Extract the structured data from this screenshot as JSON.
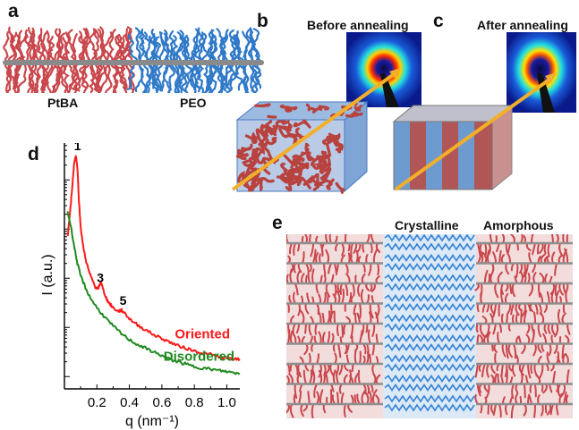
{
  "panels": {
    "a": {
      "letter": "a",
      "block_labels": [
        "PtBA",
        "PEO"
      ]
    },
    "b": {
      "letter": "b",
      "title": "Before annealing"
    },
    "c": {
      "letter": "c",
      "title": "After annealing"
    },
    "d": {
      "letter": "d"
    },
    "e": {
      "letter": "e",
      "region_labels": [
        "Crystalline",
        "Amorphous"
      ]
    }
  },
  "colors": {
    "ptba": "#c9474c",
    "peo": "#2f79c8",
    "backbone": "#8a8a8a",
    "oriented": "#ff1a1a",
    "disordered": "#1f8a1f",
    "arrow": "#f2b02a"
  },
  "chart_data": {
    "type": "line",
    "xlabel": "q (nm⁻¹)",
    "ylabel": "I (a.u.)",
    "xlim": [
      0.0,
      1.08
    ],
    "ylim": [
      0,
      1
    ],
    "x_ticks": [
      "0.2",
      "0.4",
      "0.6",
      "0.8",
      "1.0"
    ],
    "y_scale": "log",
    "peak_labels": [
      {
        "text": "1",
        "q": 0.07
      },
      {
        "text": "3",
        "q": 0.21
      },
      {
        "text": "5",
        "q": 0.35
      }
    ],
    "series": [
      {
        "name": "Oriented",
        "color": "#ff1a1a",
        "x": [
          0.02,
          0.035,
          0.05,
          0.06,
          0.07,
          0.08,
          0.09,
          0.1,
          0.115,
          0.13,
          0.15,
          0.17,
          0.19,
          0.205,
          0.215,
          0.225,
          0.24,
          0.26,
          0.28,
          0.3,
          0.33,
          0.35,
          0.37,
          0.4,
          0.45,
          0.5,
          0.55,
          0.6,
          0.65,
          0.7,
          0.75,
          0.8,
          0.85,
          0.9,
          0.95,
          1.0,
          1.05,
          1.08
        ],
        "y": [
          0.62,
          0.72,
          0.84,
          0.92,
          0.95,
          0.9,
          0.76,
          0.66,
          0.58,
          0.53,
          0.48,
          0.445,
          0.415,
          0.405,
          0.42,
          0.435,
          0.4,
          0.365,
          0.345,
          0.33,
          0.315,
          0.32,
          0.31,
          0.285,
          0.26,
          0.24,
          0.22,
          0.205,
          0.19,
          0.175,
          0.165,
          0.155,
          0.145,
          0.14,
          0.13,
          0.125,
          0.12,
          0.12
        ]
      },
      {
        "name": "Disordered",
        "color": "#1f8a1f",
        "x": [
          0.02,
          0.04,
          0.06,
          0.08,
          0.1,
          0.13,
          0.16,
          0.2,
          0.25,
          0.3,
          0.35,
          0.4,
          0.45,
          0.5,
          0.55,
          0.6,
          0.65,
          0.7,
          0.75,
          0.8,
          0.85,
          0.9,
          0.95,
          1.0,
          1.05,
          1.08
        ],
        "y": [
          0.72,
          0.66,
          0.58,
          0.51,
          0.46,
          0.41,
          0.37,
          0.33,
          0.29,
          0.255,
          0.225,
          0.2,
          0.18,
          0.165,
          0.15,
          0.135,
          0.12,
          0.11,
          0.1,
          0.09,
          0.085,
          0.08,
          0.075,
          0.07,
          0.065,
          0.062
        ]
      }
    ]
  }
}
